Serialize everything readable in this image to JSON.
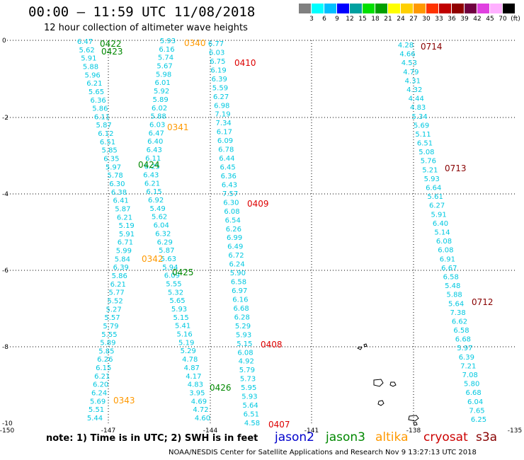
{
  "title": "00:00 – 11:59 UTC 11/08/2018",
  "subtitle": "12 hour collection of altimeter wave heights",
  "legend": {
    "labels": [
      "3",
      "6",
      "9",
      "12",
      "15",
      "18",
      "21",
      "24",
      "27",
      "30",
      "33",
      "36",
      "39",
      "42",
      "45",
      "70",
      "(ft)"
    ],
    "colors": [
      "#808080",
      "#00ffff",
      "#00bfff",
      "#0000ff",
      "#00a0a0",
      "#00e000",
      "#00a000",
      "#ffff00",
      "#ffd000",
      "#ff9900",
      "#ff3300",
      "#c00000",
      "#900000",
      "#700040",
      "#e040e0",
      "#ffb0ff",
      "#000000"
    ]
  },
  "note": "note: 1) Time is in UTC; 2) SWH is in feet",
  "satellites": [
    {
      "name": "jason2",
      "color": "#0000cc"
    },
    {
      "name": "jason3",
      "color": "#008800"
    },
    {
      "name": "altika",
      "color": "#ff9900"
    },
    {
      "name": "cryosat",
      "color": "#cc0000"
    },
    {
      "name": "s3a",
      "color": "#880000"
    }
  ],
  "footer": "NOAA/NESDIS Center for Satellite Applications and Research   Nov  9 13:27:13 UTC 2018",
  "map": {
    "xticks": [
      "-150",
      "-147",
      "-144",
      "-141",
      "-138",
      "-135"
    ],
    "yticks": [
      "0",
      "-2",
      "-4",
      "-6",
      "-8",
      "-10"
    ],
    "track_color": "#00c8e0"
  },
  "time_labels": [
    {
      "text": "0422",
      "color": "#008800"
    },
    {
      "text": "0423",
      "color": "#008800"
    },
    {
      "text": "0340",
      "color": "#ff9900"
    },
    {
      "text": "0410",
      "color": "#dd0000"
    },
    {
      "text": "0714",
      "color": "#880000"
    },
    {
      "text": "0341",
      "color": "#ff9900"
    },
    {
      "text": "0424",
      "color": "#008800"
    },
    {
      "text": "0713",
      "color": "#880000"
    },
    {
      "text": "0409",
      "color": "#dd0000"
    },
    {
      "text": "0342",
      "color": "#ff9900"
    },
    {
      "text": "0425",
      "color": "#008800"
    },
    {
      "text": "0712",
      "color": "#880000"
    },
    {
      "text": "0408",
      "color": "#dd0000"
    },
    {
      "text": "0426",
      "color": "#008800"
    },
    {
      "text": "0343",
      "color": "#ff9900"
    },
    {
      "text": "0407",
      "color": "#dd0000"
    }
  ],
  "tracks": [
    {
      "name": "track-0422",
      "values": [
        "6.47",
        "5.62",
        "5.91",
        "5.88",
        "5.96",
        "6.21",
        "5.65",
        "6.36",
        "5.86",
        "6.11",
        "5.87",
        "6.12",
        "6.51",
        "5.85",
        "6.35",
        "5.97",
        "5.78",
        "6.30",
        "6.38",
        "6.41",
        "5.87",
        "6.21",
        "5.19",
        "5.91",
        "6.71",
        "5.99",
        "5.84",
        "6.39",
        "5.86",
        "6.21",
        "5.77",
        "5.52",
        "5.27",
        "5.57",
        "5.79",
        "5.55",
        "5.89",
        "5.85",
        "6.26",
        "6.15",
        "6.21",
        "6.20",
        "6.24",
        "5.69",
        "5.51",
        "5.44"
      ]
    },
    {
      "name": "track-0340",
      "values": [
        "5.93",
        "6.16",
        "5.74",
        "5.67",
        "5.98",
        "6.01",
        "5.92",
        "5.89",
        "6.02",
        "5.88",
        "6.03",
        "6.47",
        "6.40",
        "6.43",
        "6.11",
        "6.25",
        "6.43",
        "6.21",
        "6.15",
        "6.92",
        "5.49",
        "5.62",
        "6.04",
        "6.32",
        "6.29",
        "5.87",
        "5.63",
        "5.94",
        "6.09",
        "5.55",
        "5.32",
        "5.65",
        "5.93",
        "5.15",
        "5.41",
        "5.16",
        "5.19",
        "5.29",
        "4.78",
        "4.87",
        "4.17",
        "4.83",
        "3.95",
        "4.69",
        "4.72",
        "4.60"
      ]
    },
    {
      "name": "track-0410",
      "values": [
        "6.77",
        "6.03",
        "6.75",
        "6.19",
        "6.39",
        "5.59",
        "6.27",
        "6.98",
        "7.19",
        "7.34",
        "6.17",
        "6.09",
        "6.78",
        "6.44",
        "6.45",
        "6.36",
        "6.43",
        "7.57",
        "6.30",
        "6.08",
        "6.54",
        "6.26",
        "6.99",
        "6.49",
        "6.72",
        "6.24",
        "5.90",
        "6.58",
        "6.97",
        "6.16",
        "6.68",
        "6.28",
        "5.29",
        "5.93",
        "5.15",
        "6.08",
        "4.92",
        "5.79",
        "5.73",
        "5.95",
        "5.93",
        "5.64",
        "6.51",
        "4.58"
      ]
    },
    {
      "name": "track-0714",
      "values": [
        "4.28",
        "4.66",
        "4.53",
        "4.79",
        "4.31",
        "4.32",
        "4.44",
        "4.83",
        "5.34",
        "5.69",
        "5.11",
        "6.51",
        "5.08",
        "5.76",
        "5.21",
        "5.93",
        "6.64",
        "5.61",
        "6.27",
        "5.91",
        "6.40",
        "5.14",
        "6.08",
        "6.08",
        "6.91",
        "6.67",
        "6.58",
        "5.48",
        "5.88",
        "5.64",
        "7.38",
        "6.62",
        "6.58",
        "6.68",
        "5.97",
        "6.39",
        "7.21",
        "7.08",
        "5.80",
        "6.68",
        "6.04",
        "7.65",
        "6.25"
      ]
    }
  ]
}
